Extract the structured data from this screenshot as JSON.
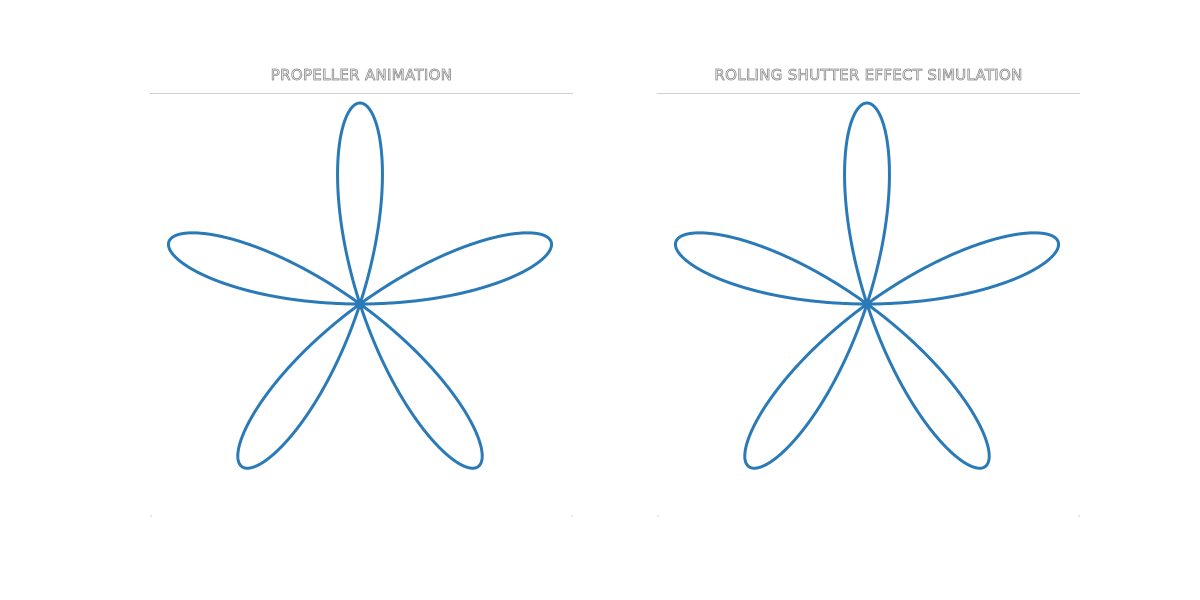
{
  "panels": [
    {
      "id": "left",
      "title": "PROPELLER ANIMATION",
      "figure": {
        "shape": "five-petal-rose",
        "petals": 5,
        "rotation_deg": -90,
        "line_color": "#2a7ab8"
      }
    },
    {
      "id": "right",
      "title": "ROLLING SHUTTER EFFECT SIMULATION",
      "figure": {
        "shape": "five-petal-rose",
        "petals": 5,
        "rotation_deg": -90,
        "line_color": "#2a7ab8"
      }
    }
  ]
}
